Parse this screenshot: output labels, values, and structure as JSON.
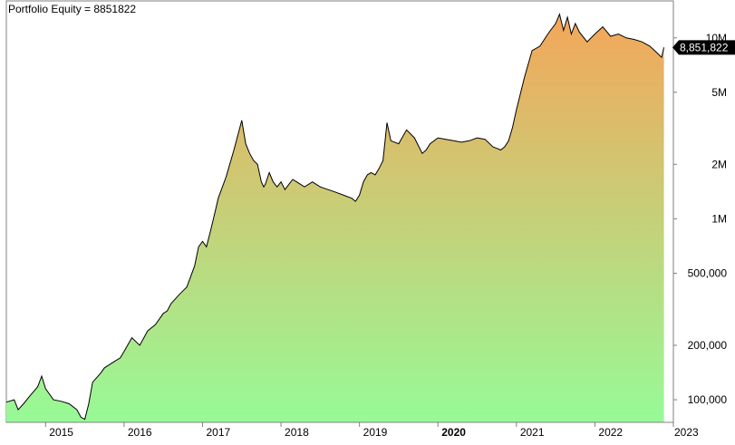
{
  "chart_data": {
    "type": "area",
    "title": "Portfolio Equity = 8851822",
    "y_scale": "log",
    "ylim": [
      75000,
      16000000
    ],
    "xlim": [
      2014.5,
      2023.0
    ],
    "grid": false,
    "last_value_label": "8,851,822",
    "y_ticks": [
      {
        "value": 10000000,
        "label": "10M"
      },
      {
        "value": 5000000,
        "label": "5M"
      },
      {
        "value": 2000000,
        "label": "2M"
      },
      {
        "value": 1000000,
        "label": "1M"
      },
      {
        "value": 500000,
        "label": "500,000"
      },
      {
        "value": 200000,
        "label": "200,000"
      },
      {
        "value": 100000,
        "label": "100,000"
      }
    ],
    "x_ticks": [
      {
        "value": 2015.0,
        "label": "2015",
        "bold": false
      },
      {
        "value": 2016.0,
        "label": "2016",
        "bold": false
      },
      {
        "value": 2017.0,
        "label": "2017",
        "bold": false
      },
      {
        "value": 2018.0,
        "label": "2018",
        "bold": false
      },
      {
        "value": 2019.0,
        "label": "2019",
        "bold": false
      },
      {
        "value": 2020.0,
        "label": "2020",
        "bold": true
      },
      {
        "value": 2021.0,
        "label": "2021",
        "bold": false
      },
      {
        "value": 2022.0,
        "label": "2022",
        "bold": false
      },
      {
        "value": 2023.0,
        "label": "2023",
        "bold": false
      }
    ],
    "gradient": {
      "top": "#f4a65a",
      "bottom": "#97fa97"
    },
    "series": [
      {
        "x": [
          2014.5,
          2014.6,
          2014.65,
          2014.72,
          2014.8,
          2014.9,
          2014.95,
          2015.0,
          2015.1,
          2015.2,
          2015.3,
          2015.4,
          2015.45,
          2015.5,
          2015.55,
          2015.6,
          2015.7,
          2015.75,
          2015.8,
          2015.85,
          2015.9,
          2015.95,
          2016.0,
          2016.1,
          2016.2,
          2016.3,
          2016.4,
          2016.5,
          2016.55,
          2016.6,
          2016.7,
          2016.8,
          2016.9,
          2016.95,
          2017.0,
          2017.05,
          2017.1,
          2017.15,
          2017.2,
          2017.3,
          2017.4,
          2017.5,
          2017.55,
          2017.6,
          2017.65,
          2017.7,
          2017.75,
          2017.78,
          2017.8,
          2017.85,
          2017.9,
          2017.95,
          2018.0,
          2018.05,
          2018.1,
          2018.15,
          2018.2,
          2018.3,
          2018.4,
          2018.5,
          2018.6,
          2018.7,
          2018.8,
          2018.9,
          2018.95,
          2019.0,
          2019.05,
          2019.1,
          2019.15,
          2019.2,
          2019.25,
          2019.3,
          2019.35,
          2019.4,
          2019.5,
          2019.6,
          2019.7,
          2019.8,
          2019.85,
          2019.9,
          2020.0,
          2020.1,
          2020.2,
          2020.3,
          2020.4,
          2020.5,
          2020.6,
          2020.7,
          2020.75,
          2020.8,
          2020.85,
          2020.9,
          2020.95,
          2021.0,
          2021.1,
          2021.2,
          2021.3,
          2021.4,
          2021.5,
          2021.55,
          2021.6,
          2021.65,
          2021.7,
          2021.75,
          2021.8,
          2021.9,
          2022.0,
          2022.1,
          2022.2,
          2022.3,
          2022.4,
          2022.5,
          2022.6,
          2022.7,
          2022.8,
          2022.85,
          2022.88
        ],
        "y": [
          97000,
          100000,
          88000,
          95000,
          105000,
          118000,
          135000,
          115000,
          100000,
          98000,
          95000,
          88000,
          80000,
          78000,
          95000,
          125000,
          140000,
          150000,
          155000,
          160000,
          165000,
          170000,
          185000,
          220000,
          200000,
          240000,
          260000,
          300000,
          310000,
          340000,
          380000,
          420000,
          550000,
          700000,
          750000,
          700000,
          850000,
          1050000,
          1300000,
          1700000,
          2400000,
          3500000,
          2600000,
          2300000,
          2100000,
          2000000,
          1600000,
          1500000,
          1550000,
          1800000,
          1600000,
          1500000,
          1600000,
          1450000,
          1550000,
          1650000,
          1600000,
          1500000,
          1600000,
          1500000,
          1450000,
          1400000,
          1350000,
          1300000,
          1250000,
          1350000,
          1600000,
          1750000,
          1800000,
          1750000,
          1900000,
          2100000,
          3400000,
          2700000,
          2600000,
          3100000,
          2800000,
          2300000,
          2400000,
          2600000,
          2800000,
          2750000,
          2700000,
          2650000,
          2700000,
          2800000,
          2750000,
          2500000,
          2450000,
          2400000,
          2500000,
          2700000,
          3200000,
          4000000,
          6000000,
          8500000,
          9000000,
          10500000,
          12000000,
          13500000,
          11000000,
          13000000,
          10500000,
          12000000,
          10800000,
          9500000,
          10500000,
          11500000,
          10200000,
          10500000,
          10000000,
          9800000,
          9500000,
          9000000,
          8200000,
          7800000,
          8851822
        ]
      }
    ]
  }
}
